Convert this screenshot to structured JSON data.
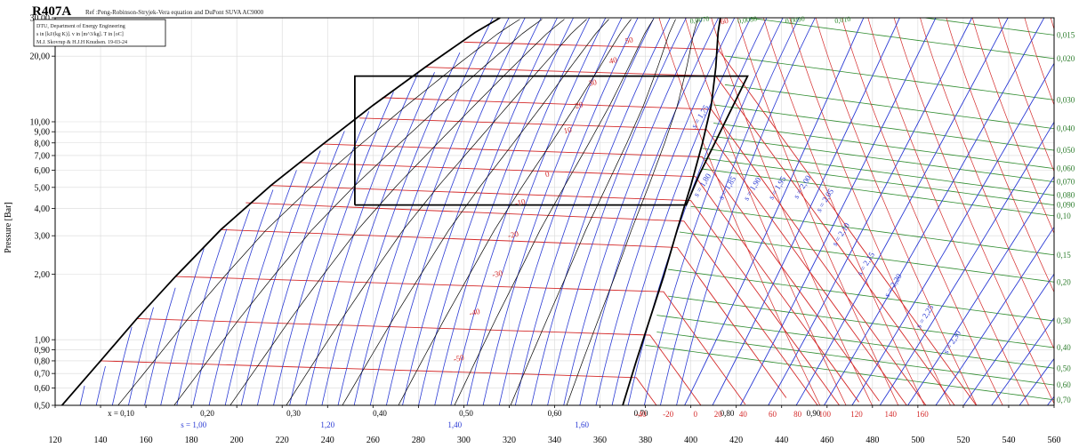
{
  "chart_data": {
    "type": "line",
    "title": "R407A",
    "subtitle": "Ref :Peng-Robinson-Stryjek-Vera equation and DuPont SUVA AC9000",
    "notes": [
      "DTU, Department of Energy Engineering",
      "s in [kJ/(kg K)]. v in [m^3/kg]. T in [oC]",
      "M.J. Skovrup & H.J.H Knudsen. 19-03-24"
    ],
    "ylabel": "Pressure [Bar]",
    "y_scale": "log",
    "xlim": [
      120,
      560
    ],
    "ylim": [
      0.5,
      30
    ],
    "x_ticks": [
      "120",
      "140",
      "160",
      "180",
      "200",
      "220",
      "240",
      "260",
      "280",
      "300",
      "320",
      "340",
      "360",
      "380",
      "400",
      "420",
      "440",
      "460",
      "480",
      "500",
      "520",
      "540",
      "560"
    ],
    "y_ticks": [
      {
        "v": 30,
        "label": "30,00"
      },
      {
        "v": 20,
        "label": "20,00"
      },
      {
        "v": 10,
        "label": "10,00"
      },
      {
        "v": 9,
        "label": "9,00"
      },
      {
        "v": 8,
        "label": "8,00"
      },
      {
        "v": 7,
        "label": "7,00"
      },
      {
        "v": 6,
        "label": "6,00"
      },
      {
        "v": 5,
        "label": "5,00"
      },
      {
        "v": 4,
        "label": "4,00"
      },
      {
        "v": 3,
        "label": "3,00"
      },
      {
        "v": 2,
        "label": "2,00"
      },
      {
        "v": 1,
        "label": "1,00"
      },
      {
        "v": 0.9,
        "label": "0,90"
      },
      {
        "v": 0.8,
        "label": "0,80"
      },
      {
        "v": 0.7,
        "label": "0,70"
      },
      {
        "v": 0.6,
        "label": "0,60"
      },
      {
        "v": 0.5,
        "label": "0,50"
      }
    ],
    "right_volume_ticks": [
      {
        "label": "0,015",
        "p": 25.0
      },
      {
        "label": "0,020",
        "p": 19.5
      },
      {
        "label": "0,030",
        "p": 12.6
      },
      {
        "label": "0,040",
        "p": 9.3
      },
      {
        "label": "0,050",
        "p": 7.4
      },
      {
        "label": "0,060",
        "p": 6.1
      },
      {
        "label": "0,070",
        "p": 5.3
      },
      {
        "label": "0,080",
        "p": 4.6
      },
      {
        "label": "0,090",
        "p": 4.15
      },
      {
        "label": "0,10",
        "p": 3.7
      },
      {
        "label": "0,15",
        "p": 2.45
      },
      {
        "label": "0,20",
        "p": 1.84
      },
      {
        "label": "0,30",
        "p": 1.22
      },
      {
        "label": "0,40",
        "p": 0.92
      },
      {
        "label": "0,50",
        "p": 0.74
      },
      {
        "label": "0,60",
        "p": 0.62
      },
      {
        "label": "0,70",
        "p": 0.53
      }
    ],
    "top_volume_labels": [
      "0,0070",
      "0,0080",
      "0,0090",
      "0,010"
    ],
    "quality_labels": [
      "x = 0,10",
      "0,20",
      "0,30",
      "0,40",
      "0,50",
      "0,60",
      "0,70",
      "0,80",
      "0,90"
    ],
    "quality_label_h": [
      149,
      187,
      225,
      263,
      301,
      340,
      378,
      416,
      454
    ],
    "entropy_bottom_labels": [
      "s = 1,00",
      "1,20",
      "1,40",
      "1,60"
    ],
    "entropy_bottom_h": [
      181,
      240,
      296,
      352
    ],
    "temperature_labels": [
      "60",
      "50",
      "40",
      "30",
      "20",
      "10",
      "0",
      "-10",
      "-20",
      "-30",
      "-40",
      "-50"
    ],
    "temperature_label_pos": [
      [
        415,
        28.2
      ],
      [
        373,
        23.0
      ],
      [
        366,
        18.6
      ],
      [
        357,
        14.7
      ],
      [
        351,
        11.6
      ],
      [
        346,
        8.9
      ],
      [
        337,
        5.6
      ],
      [
        325,
        4.15
      ],
      [
        322,
        2.95
      ],
      [
        315,
        1.95
      ],
      [
        305,
        1.3
      ],
      [
        298,
        0.8
      ]
    ],
    "bottom_temperature_labels": [
      "-40",
      "-20",
      "0",
      "20",
      "40",
      "60",
      "80",
      "100",
      "120",
      "140",
      "160"
    ],
    "bottom_temperature_h": [
      378,
      390,
      402,
      412,
      423,
      436,
      447,
      459,
      473,
      488,
      502
    ],
    "entropy_vapor_labels": [
      "s = 1,75",
      "s = 1,80",
      "s = 1,85",
      "s = 1,90",
      "s = 1,95",
      "s = 2,00",
      "s = 2,05",
      "s = 2,10",
      "s = 2,15",
      "s = 2,20",
      "s = 2,25",
      "s = 2,30"
    ],
    "entropy_vapor_pos": [
      [
        405,
        10.4
      ],
      [
        406,
        5.05
      ],
      [
        417,
        4.9
      ],
      [
        428,
        4.85
      ],
      [
        439,
        4.9
      ],
      [
        450,
        4.95
      ],
      [
        460,
        4.3
      ],
      [
        467,
        3.0
      ],
      [
        478,
        2.2
      ],
      [
        490,
        1.75
      ],
      [
        504,
        1.26
      ],
      [
        516,
        0.96
      ]
    ],
    "saturation_liquid": [
      [
        123,
        0.5
      ],
      [
        140,
        0.8
      ],
      [
        156,
        1.25
      ],
      [
        173,
        1.95
      ],
      [
        193,
        3.2
      ],
      [
        215,
        5.1
      ],
      [
        238,
        7.9
      ],
      [
        260,
        11.9
      ],
      [
        283,
        17.8
      ],
      [
        305,
        25.7
      ],
      [
        316,
        30
      ]
    ],
    "saturation_vapor": [
      [
        370,
        0.5
      ],
      [
        376,
        0.8
      ],
      [
        382,
        1.25
      ],
      [
        388,
        1.95
      ],
      [
        394,
        3.2
      ],
      [
        400,
        5.1
      ],
      [
        405,
        7.9
      ],
      [
        409,
        11.9
      ],
      [
        411,
        17.8
      ],
      [
        412,
        25.7
      ],
      [
        413,
        30
      ]
    ],
    "isotherms": [
      {
        "t": -50,
        "h_liq": 140,
        "p_liq": 0.8,
        "h_vap": 376,
        "p_vap": 0.67
      },
      {
        "t": -40,
        "h_liq": 156,
        "p_liq": 1.25,
        "h_vap": 382,
        "p_vap": 1.05
      },
      {
        "t": -30,
        "h_liq": 173,
        "p_liq": 1.95,
        "h_vap": 388,
        "p_vap": 1.66
      },
      {
        "t": -20,
        "h_liq": 193,
        "p_liq": 3.2,
        "h_vap": 394,
        "p_vap": 2.65
      },
      {
        "t": -10,
        "h_liq": 204,
        "p_liq": 4.25,
        "h_vap": 397,
        "p_vap": 3.5
      },
      {
        "t": 0,
        "h_liq": 215,
        "p_liq": 5.1,
        "h_vap": 400,
        "p_vap": 4.35
      },
      {
        "t": 10,
        "h_liq": 228,
        "p_liq": 6.5,
        "h_vap": 402,
        "p_vap": 5.6
      },
      {
        "t": 20,
        "h_liq": 238,
        "p_liq": 7.9,
        "h_vap": 405,
        "p_vap": 6.9
      },
      {
        "t": 30,
        "h_liq": 254,
        "p_liq": 10.4,
        "h_vap": 407,
        "p_vap": 9.2
      },
      {
        "t": 40,
        "h_liq": 264,
        "p_liq": 12.9,
        "h_vap": 409,
        "p_vap": 11.4
      },
      {
        "t": 50,
        "h_liq": 283,
        "p_liq": 17.8,
        "h_vap": 411,
        "p_vap": 16.2
      },
      {
        "t": 60,
        "h_liq": 300,
        "p_liq": 23.2,
        "h_vap": 412,
        "p_vap": 21.5
      }
    ],
    "cycle": [
      [
        252,
        4.15
      ],
      [
        252,
        16.2
      ],
      [
        409,
        16.2
      ],
      [
        425,
        16.2
      ],
      [
        404,
        5.8
      ],
      [
        398,
        4.15
      ],
      [
        252,
        4.15
      ]
    ],
    "colors": {
      "saturation": "#000000",
      "cycle": "#000000",
      "isotherm": "#d42a2a",
      "isentrope": "#2a3ad4",
      "isochore": "#2e8b2e",
      "quality": "#000000",
      "grid": "#d9d9d9"
    },
    "grid": true
  }
}
